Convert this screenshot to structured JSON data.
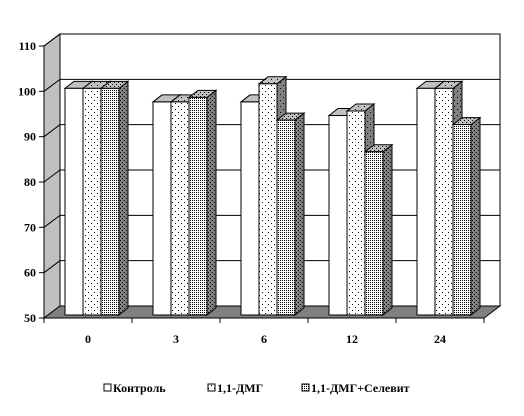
{
  "chart_data": {
    "type": "bar",
    "title": "",
    "xlabel": "",
    "ylabel": "",
    "ylim": [
      50,
      110
    ],
    "yticks": [
      50,
      60,
      70,
      80,
      90,
      100,
      110
    ],
    "grid": true,
    "three_d": true,
    "legend_position": "bottom",
    "categories": [
      "0",
      "3",
      "6",
      "12",
      "24"
    ],
    "series": [
      {
        "name": "Контроль",
        "pattern": "solid-white",
        "values": [
          100,
          97,
          97,
          94,
          100
        ]
      },
      {
        "name": "1,1-ДМГ",
        "pattern": "sparse-dots",
        "values": [
          100,
          97,
          101,
          95,
          100
        ]
      },
      {
        "name": "1,1-ДМГ+Селевит",
        "pattern": "dense-dots",
        "values": [
          100,
          98,
          93,
          86,
          92
        ]
      }
    ],
    "colors": {
      "wall": "#ffffff",
      "floor": "#808080",
      "side_wall": "#c0c0c0",
      "bar_side": "#808080",
      "bar_top": "#c0c0c0"
    }
  }
}
